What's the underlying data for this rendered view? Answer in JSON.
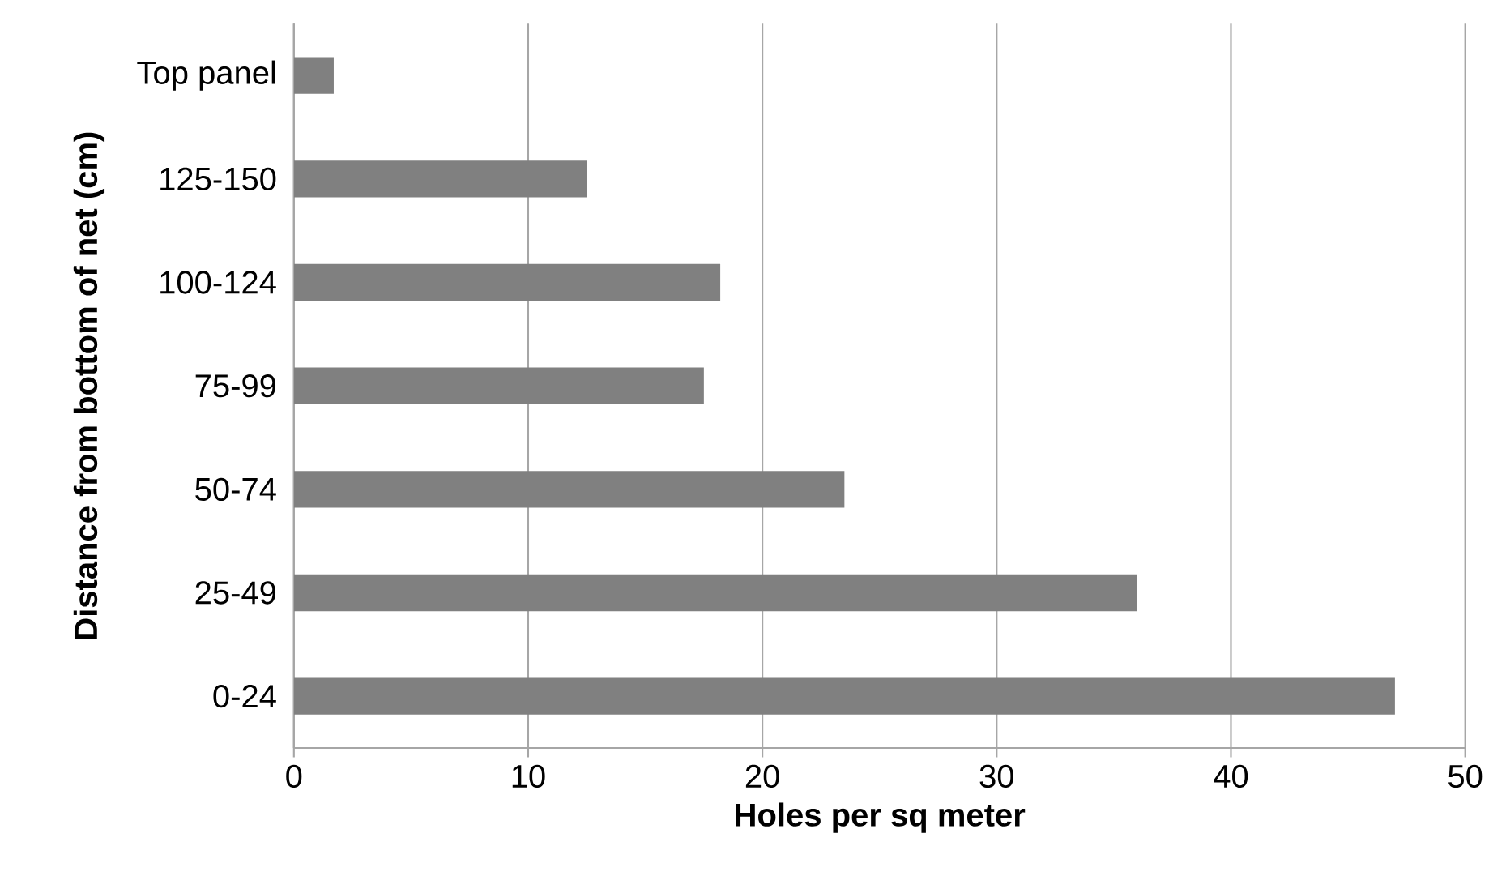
{
  "chart_data": {
    "type": "bar",
    "orientation": "horizontal",
    "xlabel": "Holes per sq meter",
    "ylabel": "Distance from bottom of net (cm)",
    "categories": [
      "Top panel",
      "125-150",
      "100-124",
      "75-99",
      "50-74",
      "25-49",
      "0-24"
    ],
    "values": [
      1.7,
      12.5,
      18.2,
      17.5,
      23.5,
      36.0,
      47.0
    ],
    "color": "#808080",
    "xlim": [
      0,
      50
    ],
    "xticks": [
      0,
      10,
      20,
      30,
      40,
      50
    ],
    "grid": "x"
  }
}
